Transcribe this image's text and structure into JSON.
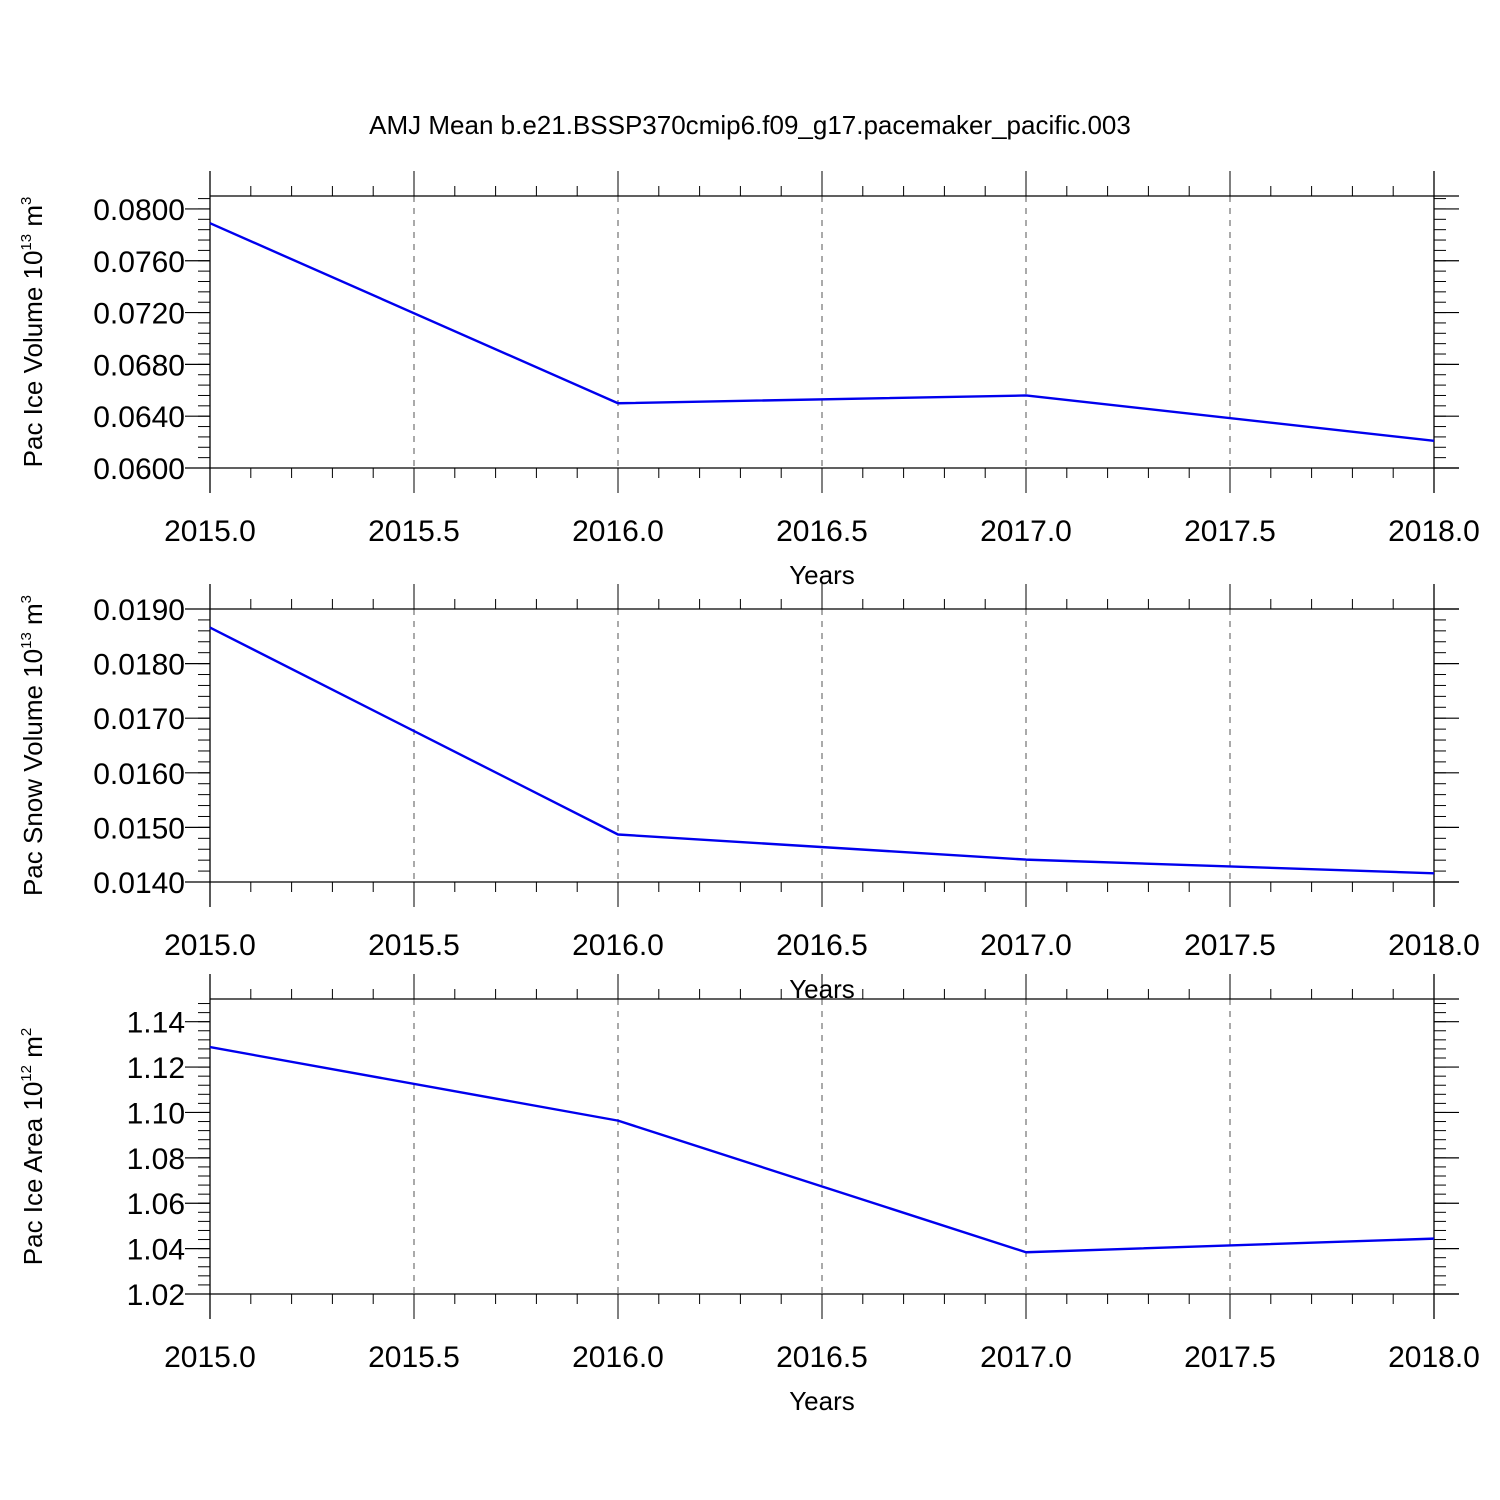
{
  "figure": {
    "title": "AMJ Mean b.e21.BSSP370cmip6.f09_g17.pacemaker_pacific.003"
  },
  "colors": {
    "series": "#0000ee",
    "axis": "#000000",
    "grid": "#555555"
  },
  "chart_data": [
    {
      "type": "line",
      "title": "",
      "xlabel": "Years",
      "ylabel_parts": {
        "prefix": "Pac Ice Volume 10",
        "exp": "13",
        "mid": " m",
        "unit_exp": "3"
      },
      "x": [
        2015.0,
        2016.0,
        2017.0,
        2018.0
      ],
      "series": [
        {
          "values": [
            0.0789,
            0.065,
            0.0656,
            0.0621
          ]
        }
      ],
      "xlim": [
        2015.0,
        2018.0
      ],
      "ylim": [
        0.06,
        0.081
      ],
      "xticks": [
        2015.0,
        2015.5,
        2016.0,
        2016.5,
        2017.0,
        2017.5,
        2018.0
      ],
      "xtick_labels": [
        "2015.0",
        "2015.5",
        "2016.0",
        "2016.5",
        "2017.0",
        "2017.5",
        "2018.0"
      ],
      "yticks": [
        0.06,
        0.064,
        0.068,
        0.072,
        0.076,
        0.08
      ],
      "ytick_labels": [
        "0.0600",
        "0.0640",
        "0.0680",
        "0.0720",
        "0.0760",
        "0.0800"
      ],
      "y_minor_step": 0.0008,
      "x_minor_step": 0.1,
      "grid": "vertical dashed at major x ticks"
    },
    {
      "type": "line",
      "title": "",
      "xlabel": "Years",
      "ylabel_parts": {
        "prefix": "Pac Snow Volume 10",
        "exp": "13",
        "mid": " m",
        "unit_exp": "3"
      },
      "x": [
        2015.0,
        2016.0,
        2017.0,
        2018.0
      ],
      "series": [
        {
          "values": [
            0.01866,
            0.01487,
            0.01441,
            0.01416
          ]
        }
      ],
      "xlim": [
        2015.0,
        2018.0
      ],
      "ylim": [
        0.014,
        0.019
      ],
      "xticks": [
        2015.0,
        2015.5,
        2016.0,
        2016.5,
        2017.0,
        2017.5,
        2018.0
      ],
      "xtick_labels": [
        "2015.0",
        "2015.5",
        "2016.0",
        "2016.5",
        "2017.0",
        "2017.5",
        "2018.0"
      ],
      "yticks": [
        0.014,
        0.015,
        0.016,
        0.017,
        0.018,
        0.019
      ],
      "ytick_labels": [
        "0.0140",
        "0.0150",
        "0.0160",
        "0.0170",
        "0.0180",
        "0.0190"
      ],
      "y_minor_step": 0.0002,
      "x_minor_step": 0.1,
      "grid": "vertical dashed at major x ticks"
    },
    {
      "type": "line",
      "title": "",
      "xlabel": "Years",
      "ylabel_parts": {
        "prefix": "Pac Ice Area 10",
        "exp": "12",
        "mid": " m",
        "unit_exp": "2"
      },
      "x": [
        2015.0,
        2016.0,
        2017.0,
        2018.0
      ],
      "series": [
        {
          "values": [
            1.1288,
            1.0964,
            1.0384,
            1.0444
          ]
        }
      ],
      "xlim": [
        2015.0,
        2018.0
      ],
      "ylim": [
        1.02,
        1.15
      ],
      "xticks": [
        2015.0,
        2015.5,
        2016.0,
        2016.5,
        2017.0,
        2017.5,
        2018.0
      ],
      "xtick_labels": [
        "2015.0",
        "2015.5",
        "2016.0",
        "2016.5",
        "2017.0",
        "2017.5",
        "2018.0"
      ],
      "yticks": [
        1.02,
        1.04,
        1.06,
        1.08,
        1.1,
        1.12,
        1.14
      ],
      "ytick_labels": [
        "1.02",
        "1.04",
        "1.06",
        "1.08",
        "1.10",
        "1.12",
        "1.14"
      ],
      "y_minor_step": 0.004,
      "x_minor_step": 0.1,
      "grid": "vertical dashed at major x ticks"
    }
  ]
}
